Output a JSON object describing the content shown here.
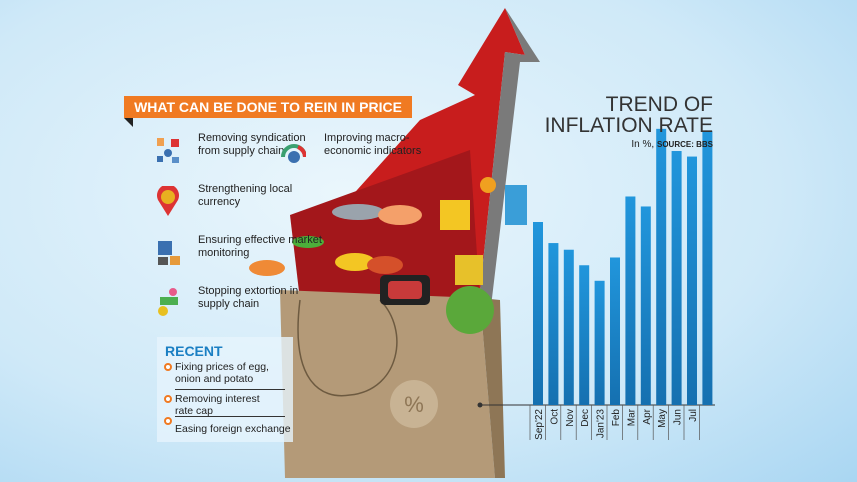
{
  "left_panel": {
    "heading": "WHAT CAN BE DONE TO REIN IN PRICE",
    "measures": [
      {
        "label": "Removing syndication from supply chain",
        "icon": "supply-chain-icon"
      },
      {
        "label": "Improving macro-economic indicators",
        "icon": "gauge-icon"
      },
      {
        "label": "Strengthening local currency",
        "icon": "currency-pin-icon"
      },
      {
        "label": "Ensuring effective market monitoring",
        "icon": "market-monitor-icon"
      },
      {
        "label": "Stopping extortion in supply chain",
        "icon": "extortion-icon"
      }
    ],
    "recent": {
      "heading": "RECENT",
      "items": [
        "Fixing prices of egg, onion and potato",
        "Removing interest rate cap",
        "Easing foreign exchange"
      ]
    }
  },
  "illustration": {
    "bag_symbol": "%"
  },
  "colors": {
    "accent": "#f07a22",
    "bar": "#1e88cf",
    "recent_heading": "#1b7fc3",
    "arrow": "#d01f1f"
  },
  "chart_data": {
    "type": "bar",
    "title": "TREND OF INFLATION RATE",
    "subtitle": "In %,",
    "source": "SOURCE: BBS",
    "categories": [
      "Sep'22",
      "Oct",
      "Nov",
      "Dec",
      "Jan'23",
      "Feb",
      "Mar",
      "Apr",
      "May",
      "Jun",
      "Jul",
      ""
    ],
    "values": [
      9.1,
      8.91,
      8.85,
      8.71,
      8.57,
      8.78,
      9.33,
      9.24,
      9.94,
      9.74,
      9.69,
      9.92
    ],
    "ylim": [
      7.45,
      10.2
    ],
    "grid": false,
    "legend": "none"
  }
}
